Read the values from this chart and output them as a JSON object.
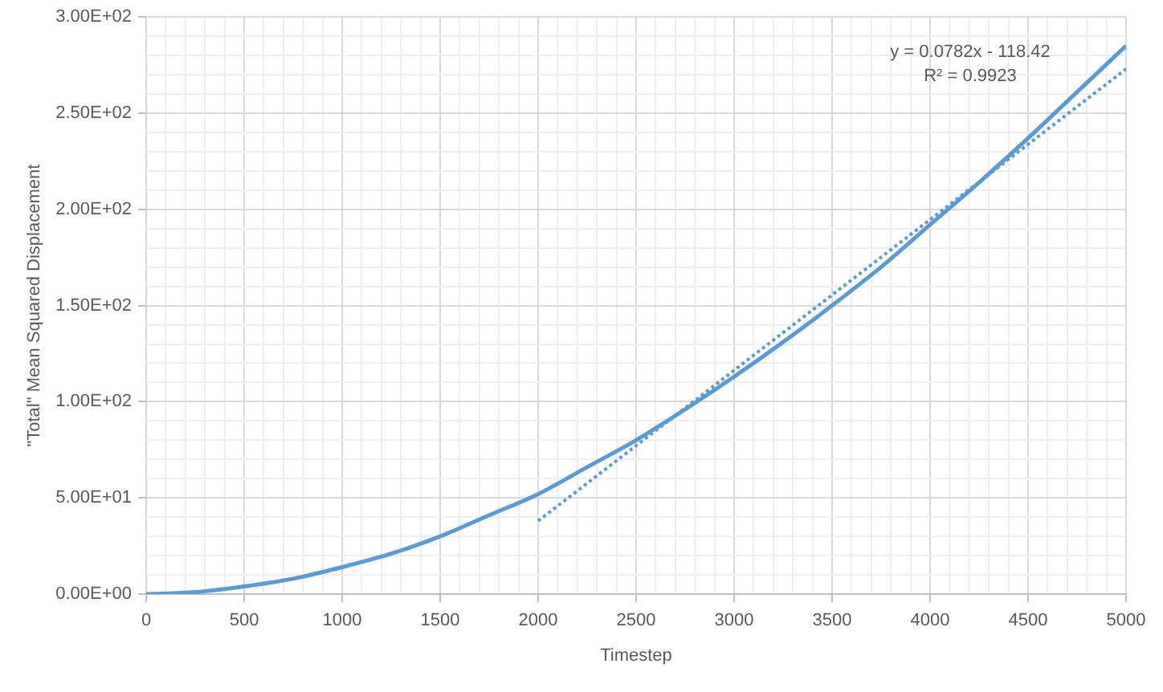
{
  "chart_data": {
    "type": "line",
    "xlabel": "Timestep",
    "ylabel": "\"Total\" Mean Squared Displacement",
    "x": [
      0,
      250,
      500,
      750,
      1000,
      1250,
      1500,
      1750,
      2000,
      2250,
      2500,
      2750,
      3000,
      3250,
      3500,
      3750,
      4000,
      4250,
      4500,
      4750,
      5000
    ],
    "series": [
      {
        "color": "#5b9bd5",
        "values": [
          0,
          1,
          4,
          8,
          14,
          21,
          30,
          41,
          52,
          66,
          80,
          96,
          113,
          131,
          150,
          170,
          192,
          214,
          237,
          261,
          285
        ]
      },
      {
        "type": "line",
        "color": "#5b9bd5",
        "line_style": "dotted",
        "x": [
          2000,
          5000
        ],
        "values": [
          38,
          273
        ]
      }
    ],
    "xlim": [
      0,
      5000
    ],
    "ylim": [
      0,
      300
    ],
    "xticks": [
      0,
      {
        "value": 100,
        "label": null
      },
      {
        "value": 200,
        "label": null
      },
      {
        "value": 300,
        "label": null
      },
      {
        "value": 400,
        "label": null
      },
      500,
      {
        "value": 600,
        "label": null
      },
      {
        "value": 700,
        "label": null
      },
      {
        "value": 800,
        "label": null
      },
      {
        "value": 900,
        "label": null
      },
      1000,
      {
        "value": 1100,
        "label": null
      },
      {
        "value": 1200,
        "label": null
      },
      {
        "value": 1300,
        "label": null
      },
      {
        "value": 1400,
        "label": null
      },
      1500,
      {
        "value": 1600,
        "label": null
      },
      {
        "value": 1700,
        "label": null
      },
      {
        "value": 1800,
        "label": null
      },
      {
        "value": 1900,
        "label": null
      },
      2000,
      {
        "value": 2100,
        "label": null
      },
      {
        "value": 2200,
        "label": null
      },
      {
        "value": 2300,
        "label": null
      },
      {
        "value": 2400,
        "label": null
      },
      2500,
      {
        "value": 2600,
        "label": null
      },
      {
        "value": 2700,
        "label": null
      },
      {
        "value": 2800,
        "label": null
      },
      {
        "value": 2900,
        "label": null
      },
      3000,
      {
        "value": 3100,
        "label": null
      },
      {
        "value": 3200,
        "label": null
      },
      {
        "value": 3300,
        "label": null
      },
      {
        "value": 3400,
        "label": null
      },
      3500,
      {
        "value": 3600,
        "label": null
      },
      {
        "value": 3700,
        "label": null
      },
      {
        "value": 3800,
        "label": null
      },
      {
        "value": 3900,
        "label": null
      },
      4000,
      {
        "value": 4100,
        "label": null
      },
      {
        "value": 4200,
        "label": null
      },
      {
        "value": 4300,
        "label": null
      },
      {
        "value": 4400,
        "label": null
      },
      4500,
      {
        "value": 4600,
        "label": null
      },
      {
        "value": 4700,
        "label": null
      },
      {
        "value": 4800,
        "label": null
      },
      {
        "value": 4900,
        "label": null
      },
      5000
    ],
    "yticks": [
      {
        "value": 0,
        "label": "0.00E+00"
      },
      {
        "value": 10,
        "label": null
      },
      {
        "value": 20,
        "label": null
      },
      {
        "value": 30,
        "label": null
      },
      {
        "value": 40,
        "label": null
      },
      {
        "value": 50,
        "label": "5.00E+01"
      },
      {
        "value": 60,
        "label": null
      },
      {
        "value": 70,
        "label": null
      },
      {
        "value": 80,
        "label": null
      },
      {
        "value": 90,
        "label": null
      },
      {
        "value": 100,
        "label": "1.00E+02"
      },
      {
        "value": 110,
        "label": null
      },
      {
        "value": 120,
        "label": null
      },
      {
        "value": 130,
        "label": null
      },
      {
        "value": 140,
        "label": null
      },
      {
        "value": 150,
        "label": "1.50E+02"
      },
      {
        "value": 160,
        "label": null
      },
      {
        "value": 170,
        "label": null
      },
      {
        "value": 180,
        "label": null
      },
      {
        "value": 190,
        "label": null
      },
      {
        "value": 200,
        "label": "2.00E+02"
      },
      {
        "value": 210,
        "label": null
      },
      {
        "value": 220,
        "label": null
      },
      {
        "value": 230,
        "label": null
      },
      {
        "value": 240,
        "label": null
      },
      {
        "value": 250,
        "label": "2.50E+02"
      },
      {
        "value": 260,
        "label": null
      },
      {
        "value": 270,
        "label": null
      },
      {
        "value": 280,
        "label": null
      },
      {
        "value": 290,
        "label": null
      },
      {
        "value": 300,
        "label": "3.00E+02"
      }
    ],
    "grid": true,
    "legend": false,
    "annotations": [
      "y = 0.0782x - 118.42",
      "R² = 0.9923"
    ]
  }
}
